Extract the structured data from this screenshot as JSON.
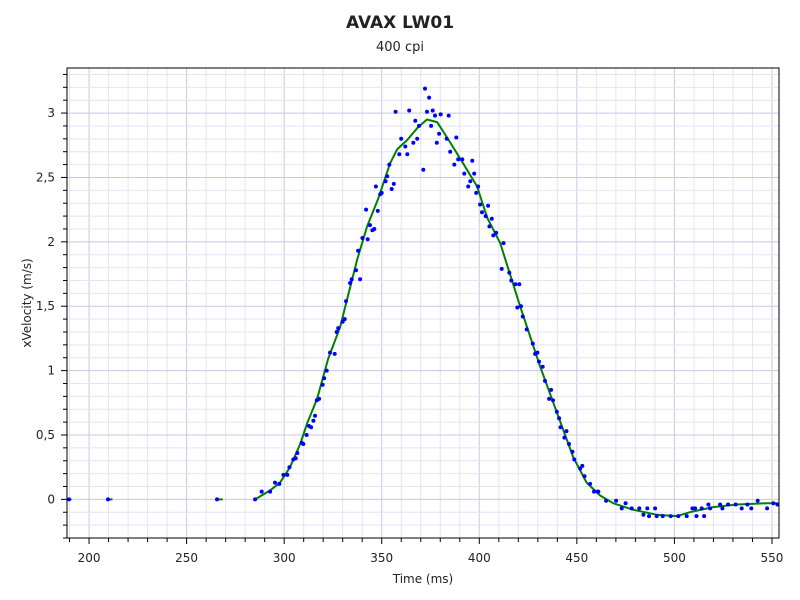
{
  "chart_data": {
    "type": "scatter",
    "title": "AVAX LW01",
    "subtitle": "400 cpi",
    "xlabel": "Time (ms)",
    "ylabel": "xVelocity (m/s)",
    "xlim": [
      188.7,
      553.6
    ],
    "ylim": [
      -0.3,
      3.35
    ],
    "x_ticks": [
      200,
      250,
      300,
      350,
      400,
      450,
      500,
      550
    ],
    "x_tick_labels": [
      "200",
      "250",
      "300",
      "350",
      "400",
      "450",
      "500",
      "550"
    ],
    "y_ticks": [
      0,
      0.5,
      1,
      1.5,
      2,
      2.5,
      3
    ],
    "y_tick_labels": [
      "0",
      "0,5",
      "1",
      "1,5",
      "2",
      "2,5",
      "3"
    ],
    "grid": true,
    "colors": {
      "points": "#0000ff",
      "curve": "#008000",
      "grid_major": "#c8c8e6",
      "grid_minor": "#e4e4f4"
    },
    "series": [
      {
        "kind": "scatter",
        "points": [
          [
            189.7,
            0
          ],
          [
            209.7,
            0
          ],
          [
            265.6,
            0
          ],
          [
            285.1,
            0
          ],
          [
            288.5,
            0.06
          ],
          [
            292.8,
            0.06
          ],
          [
            295.3,
            0.13
          ],
          [
            297.5,
            0.12
          ],
          [
            299.6,
            0.19
          ],
          [
            301.6,
            0.19
          ],
          [
            302.7,
            0.25
          ],
          [
            304.7,
            0.31
          ],
          [
            305.9,
            0.32
          ],
          [
            306.8,
            0.36
          ],
          [
            309,
            0.44
          ],
          [
            309.8,
            0.43
          ],
          [
            311.5,
            0.5
          ],
          [
            312.7,
            0.57
          ],
          [
            313.8,
            0.56
          ],
          [
            315,
            0.61
          ],
          [
            315.8,
            0.65
          ],
          [
            316.7,
            0.77
          ],
          [
            317.9,
            0.78
          ],
          [
            319.7,
            0.89
          ],
          [
            320.5,
            0.94
          ],
          [
            321.8,
            1.0
          ],
          [
            323.5,
            1.14
          ],
          [
            325.9,
            1.13
          ],
          [
            326.9,
            1.3
          ],
          [
            327.7,
            1.33
          ],
          [
            330,
            1.38
          ],
          [
            331,
            1.4
          ],
          [
            331.7,
            1.54
          ],
          [
            333.8,
            1.68
          ],
          [
            334.6,
            1.71
          ],
          [
            336.8,
            1.78
          ],
          [
            338.9,
            1.71
          ],
          [
            337.9,
            1.93
          ],
          [
            340.1,
            2.03
          ],
          [
            342.8,
            2.02
          ],
          [
            344,
            2.13
          ],
          [
            345.2,
            2.09
          ],
          [
            346.2,
            2.1
          ],
          [
            342,
            2.25
          ],
          [
            348,
            2.24
          ],
          [
            347,
            2.43
          ],
          [
            349.2,
            2.37
          ],
          [
            350,
            2.38
          ],
          [
            352,
            2.47
          ],
          [
            352.8,
            2.51
          ],
          [
            353.9,
            2.6
          ],
          [
            355.1,
            2.41
          ],
          [
            356.2,
            2.45
          ],
          [
            357.1,
            3.01
          ],
          [
            359,
            2.68
          ],
          [
            360,
            2.8
          ],
          [
            362.1,
            2.74
          ],
          [
            363.1,
            2.68
          ],
          [
            364.1,
            3.02
          ],
          [
            366.2,
            2.77
          ],
          [
            367.2,
            2.94
          ],
          [
            368.2,
            2.8
          ],
          [
            369.1,
            2.9
          ],
          [
            371.3,
            2.56
          ],
          [
            372.2,
            3.19
          ],
          [
            373.2,
            3.01
          ],
          [
            374.3,
            3.12
          ],
          [
            375.3,
            2.9
          ],
          [
            376.1,
            3.02
          ],
          [
            377.3,
            2.98
          ],
          [
            378.2,
            2.77
          ],
          [
            379.4,
            2.84
          ],
          [
            380.2,
            2.99
          ],
          [
            383.3,
            2.8
          ],
          [
            384.3,
            2.98
          ],
          [
            385.1,
            2.7
          ],
          [
            387.2,
            2.6
          ],
          [
            388.2,
            2.81
          ],
          [
            389.2,
            2.64
          ],
          [
            391.3,
            2.64
          ],
          [
            392.3,
            2.53
          ],
          [
            394.3,
            2.43
          ],
          [
            395.4,
            2.47
          ],
          [
            396.4,
            2.63
          ],
          [
            397.4,
            2.53
          ],
          [
            399.4,
            2.43
          ],
          [
            398.4,
            2.38
          ],
          [
            400.4,
            2.29
          ],
          [
            401.4,
            2.23
          ],
          [
            404.5,
            2.28
          ],
          [
            403.3,
            2.2
          ],
          [
            406.4,
            2.18
          ],
          [
            405.2,
            2.12
          ],
          [
            408.6,
            2.07
          ],
          [
            407.2,
            2.05
          ],
          [
            412.4,
            1.99
          ],
          [
            411.5,
            1.79
          ],
          [
            415.4,
            1.76
          ],
          [
            416.4,
            1.7
          ],
          [
            418.5,
            1.67
          ],
          [
            420.5,
            1.67
          ],
          [
            419.5,
            1.49
          ],
          [
            421.4,
            1.5
          ],
          [
            422.3,
            1.42
          ],
          [
            424.3,
            1.32
          ],
          [
            427.4,
            1.21
          ],
          [
            428.6,
            1.13
          ],
          [
            429.8,
            1.14
          ],
          [
            430.6,
            1.07
          ],
          [
            432.5,
            1.03
          ],
          [
            433.7,
            0.92
          ],
          [
            436.8,
            0.85
          ],
          [
            435.8,
            0.78
          ],
          [
            437.8,
            0.77
          ],
          [
            439.7,
            0.68
          ],
          [
            440.9,
            0.63
          ],
          [
            441.6,
            0.56
          ],
          [
            444.7,
            0.53
          ],
          [
            443.6,
            0.48
          ],
          [
            446,
            0.43
          ],
          [
            447.7,
            0.37
          ],
          [
            448.7,
            0.31
          ],
          [
            452.8,
            0.26
          ],
          [
            451.7,
            0.24
          ],
          [
            453.9,
            0.18
          ],
          [
            456.8,
            0.12
          ],
          [
            458.8,
            0.06
          ],
          [
            461,
            0.06
          ],
          [
            460.7,
            0.06
          ],
          [
            465,
            -0.01
          ],
          [
            470.1,
            -0.01
          ],
          [
            473,
            -0.07
          ],
          [
            475,
            -0.03
          ],
          [
            478.1,
            -0.07
          ],
          [
            482,
            -0.07
          ],
          [
            484.1,
            -0.12
          ],
          [
            486.1,
            -0.07
          ],
          [
            487,
            -0.13
          ],
          [
            490.1,
            -0.07
          ],
          [
            490.9,
            -0.13
          ],
          [
            494,
            -0.13
          ],
          [
            498.1,
            -0.13
          ],
          [
            502,
            -0.13
          ],
          [
            506.3,
            -0.13
          ],
          [
            509.2,
            -0.07
          ],
          [
            510.6,
            -0.07
          ],
          [
            511.3,
            -0.13
          ],
          [
            514,
            -0.07
          ],
          [
            515.2,
            -0.13
          ],
          [
            517.4,
            -0.04
          ],
          [
            518.3,
            -0.07
          ],
          [
            523.4,
            -0.04
          ],
          [
            524.6,
            -0.07
          ],
          [
            527.5,
            -0.04
          ],
          [
            531.4,
            -0.04
          ],
          [
            534.5,
            -0.07
          ],
          [
            537.4,
            -0.04
          ],
          [
            539.4,
            -0.07
          ],
          [
            542.7,
            -0.01
          ],
          [
            547.5,
            -0.07
          ],
          [
            550.7,
            -0.03
          ],
          [
            552.8,
            -0.04
          ]
        ]
      },
      {
        "kind": "line",
        "segments": [
          [
            [
              189,
              0
            ],
            [
              191,
              0
            ]
          ],
          [
            [
              210,
              0
            ],
            [
              212,
              0
            ]
          ],
          [
            [
              266,
              0
            ],
            [
              268.5,
              0
            ]
          ],
          [
            [
              285.1,
              0
            ],
            [
              292.8,
              0.07
            ],
            [
              297.9,
              0.13
            ],
            [
              303,
              0.25
            ],
            [
              308.2,
              0.43
            ],
            [
              312,
              0.6
            ],
            [
              316.9,
              0.78
            ],
            [
              322.5,
              1.09
            ],
            [
              328.7,
              1.34
            ],
            [
              332.2,
              1.55
            ],
            [
              337.4,
              1.86
            ],
            [
              342.5,
              2.12
            ],
            [
              348.1,
              2.33
            ],
            [
              354.3,
              2.61
            ],
            [
              358,
              2.72
            ],
            [
              363,
              2.79
            ],
            [
              368.6,
              2.89
            ],
            [
              373.2,
              2.95
            ],
            [
              378.4,
              2.93
            ],
            [
              383.5,
              2.81
            ],
            [
              391.7,
              2.61
            ],
            [
              398.9,
              2.43
            ],
            [
              404,
              2.19
            ],
            [
              410.7,
              1.99
            ],
            [
              420.9,
              1.5
            ],
            [
              431.2,
              1.03
            ],
            [
              439.9,
              0.67
            ],
            [
              448.1,
              0.33
            ],
            [
              455,
              0.13
            ],
            [
              461.9,
              0.03
            ],
            [
              468.6,
              -0.03
            ],
            [
              478.8,
              -0.08
            ],
            [
              491.1,
              -0.12
            ],
            [
              501.4,
              -0.13
            ],
            [
              508,
              -0.1
            ],
            [
              519.8,
              -0.06
            ],
            [
              532.1,
              -0.04
            ],
            [
              547.5,
              -0.03
            ],
            [
              553,
              -0.03
            ]
          ]
        ]
      }
    ]
  }
}
